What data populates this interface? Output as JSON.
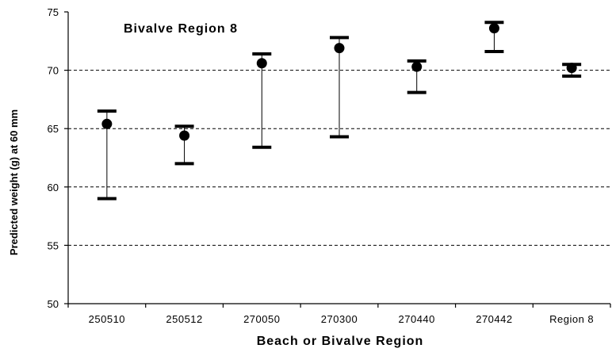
{
  "chart_data": {
    "type": "scatter",
    "title": "Bivalve Region 8",
    "xlabel": "Beach or Bivalve Region",
    "ylabel": "Predicted weight (g) at 60 mm",
    "categories": [
      "250510",
      "250512",
      "270050",
      "270300",
      "270440",
      "270442",
      "Region 8"
    ],
    "series": [
      {
        "values": [
          65.4,
          64.4,
          70.6,
          71.9,
          70.3,
          73.6,
          70.2
        ],
        "lower": [
          59.0,
          62.0,
          63.4,
          64.3,
          68.1,
          71.6,
          69.5
        ],
        "upper": [
          66.5,
          65.2,
          71.4,
          72.8,
          70.8,
          74.1,
          70.5
        ]
      }
    ],
    "ylim": [
      50,
      75
    ],
    "yticks": [
      50,
      55,
      60,
      65,
      70,
      75
    ],
    "gridlines": [
      55,
      60,
      65,
      70
    ],
    "grid": "dashed horizontal",
    "colors": {
      "marker": "#000000",
      "axis": "#000000",
      "grid": "#000000"
    }
  }
}
